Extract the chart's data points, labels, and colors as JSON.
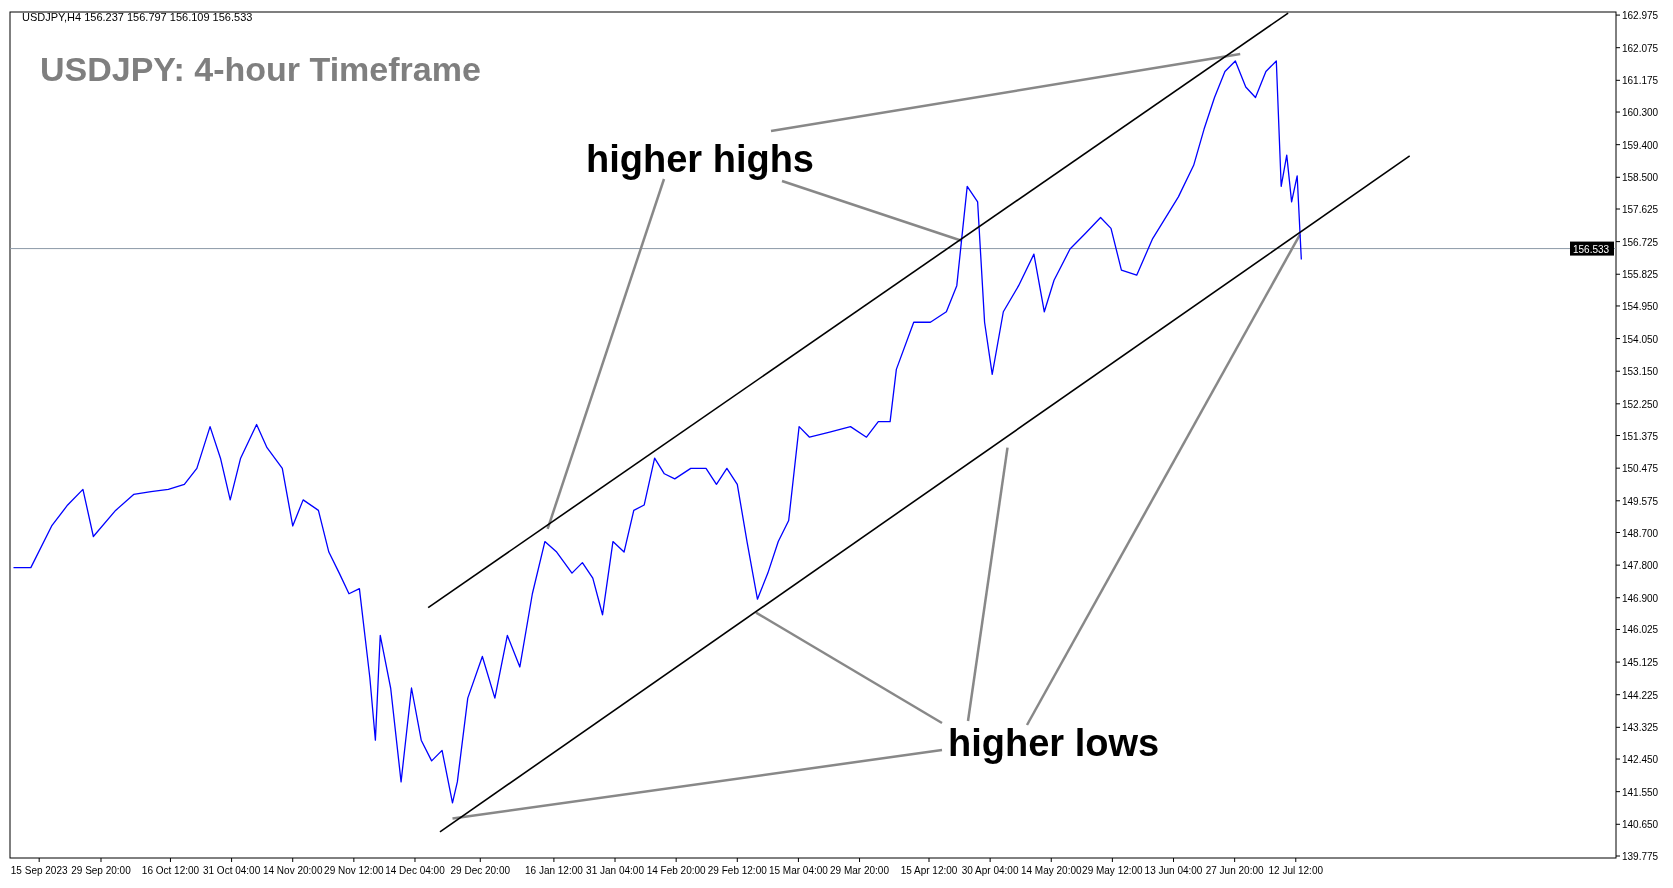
{
  "chart_data": {
    "type": "line",
    "title": "USDJPY: 4-hour Timeframe",
    "annotations": [
      "USDJPY,H4  156.237 156.797 156.109 156.533",
      {
        "text": "higher highs",
        "x": "2024-01-15T00:00",
        "y": 148.8
      },
      {
        "text": "higher lows",
        "x": "2023-12-23T04:00",
        "y": 140.81
      }
    ],
    "series": [
      {
        "color": "#0000ff",
        "x": [
          "2023-09-08T20:00",
          "2023-09-13T00:00",
          "2023-09-18T00:00",
          "2023-09-21T20:00",
          "2023-09-25T12:00",
          "2023-09-28T00:00",
          "2023-10-03T08:00",
          "2023-10-07T16:00",
          "2023-10-11T20:00",
          "2023-10-16T00:00",
          "2023-10-19T20:00",
          "2023-10-22T20:00",
          "2023-10-26T00:00",
          "2023-10-28T12:00",
          "2023-10-30T20:00",
          "2023-11-02T08:00",
          "2023-11-06T04:00",
          "2023-11-08T16:00",
          "2023-11-12T08:00",
          "2023-11-14T20:00",
          "2023-11-17T08:00",
          "2023-11-21T00:00",
          "2023-11-23T12:00",
          "2023-11-26T00:00",
          "2023-11-28T08:00",
          "2023-11-30T20:00",
          "2023-12-03T08:00",
          "2023-12-04T16:00",
          "2023-12-05T20:00",
          "2023-12-08T08:00",
          "2023-12-10T20:00",
          "2023-12-13T08:00",
          "2023-12-15T16:00",
          "2023-12-18T04:00",
          "2023-12-20T16:00",
          "2023-12-23T04:00",
          "2023-12-24T08:00",
          "2023-12-26T20:00",
          "2023-12-30T08:00",
          "2024-01-02T08:00",
          "2024-01-05T08:00",
          "2024-01-08T08:00",
          "2024-01-11T08:00",
          "2024-01-14T08:00",
          "2024-01-17T04:00",
          "2024-01-20T20:00",
          "2024-01-23T08:00",
          "2024-01-25T20:00",
          "2024-01-28T04:00",
          "2024-01-30T16:00",
          "2024-02-02T08:00",
          "2024-02-04T16:00",
          "2024-02-07T04:00",
          "2024-02-09T16:00",
          "2024-02-12T00:00",
          "2024-02-14T12:00",
          "2024-02-18T08:00",
          "2024-02-22T00:00",
          "2024-02-24T12:00",
          "2024-02-27T00:00",
          "2024-02-29T12:00",
          "2024-03-02T20:00",
          "2024-03-05T08:00",
          "2024-03-07T20:00",
          "2024-03-10T08:00",
          "2024-03-12T20:00",
          "2024-03-15T08:00",
          "2024-03-17T20:00",
          "2024-03-22T16:00",
          "2024-03-27T16:00",
          "2024-03-31T12:00",
          "2024-04-03T08:00",
          "2024-04-06T04:00",
          "2024-04-07T16:00",
          "2024-04-11T20:00",
          "2024-04-15T20:00",
          "2024-04-19T16:00",
          "2024-04-22T04:00",
          "2024-04-24T16:00",
          "2024-04-27T04:00",
          "2024-04-28T20:00",
          "2024-04-30T16:00",
          "2024-05-03T08:00",
          "2024-05-07T00:00",
          "2024-05-10T16:00",
          "2024-05-13T04:00",
          "2024-05-15T12:00",
          "2024-05-19T08:00",
          "2024-05-23T00:00",
          "2024-05-26T16:00",
          "2024-05-29T04:00",
          "2024-05-31T16:00",
          "2024-06-04T08:00",
          "2024-06-08T04:00",
          "2024-06-10T12:00",
          "2024-06-14T08:00",
          "2024-06-18T00:00",
          "2024-06-20T12:00",
          "2024-06-23T00:00",
          "2024-06-25T12:00",
          "2024-06-28T00:00",
          "2024-06-30T12:00",
          "2024-07-02T20:00",
          "2024-07-05T08:00",
          "2024-07-07T20:00",
          "2024-07-09T00:00",
          "2024-07-10T08:00",
          "2024-07-11T12:00",
          "2024-07-12T20:00",
          "2024-07-13T20:00"
        ],
        "values": [
          147.73,
          147.73,
          148.88,
          149.46,
          149.89,
          148.59,
          149.31,
          149.75,
          149.83,
          149.89,
          150.03,
          150.47,
          151.62,
          150.75,
          149.6,
          150.75,
          151.68,
          151.04,
          150.47,
          148.88,
          149.6,
          149.31,
          148.16,
          147.58,
          147.01,
          147.15,
          144.7,
          142.97,
          145.86,
          144.41,
          141.82,
          144.41,
          142.97,
          142.4,
          142.69,
          141.24,
          141.82,
          144.13,
          145.28,
          144.13,
          145.86,
          144.99,
          147.01,
          148.45,
          148.16,
          147.58,
          147.87,
          147.44,
          146.43,
          148.45,
          148.16,
          149.31,
          149.46,
          150.75,
          150.32,
          150.18,
          150.47,
          150.47,
          150.03,
          150.47,
          150.03,
          148.45,
          146.86,
          147.58,
          148.45,
          149.03,
          151.62,
          151.33,
          151.47,
          151.62,
          151.33,
          151.76,
          151.76,
          153.2,
          154.5,
          154.5,
          154.79,
          155.51,
          158.25,
          157.82,
          154.5,
          153.06,
          154.79,
          155.51,
          156.38,
          154.79,
          155.66,
          156.52,
          156.95,
          157.39,
          157.09,
          155.94,
          155.8,
          156.81,
          157.24,
          157.96,
          158.83,
          159.83,
          160.7,
          161.42,
          161.71,
          160.99,
          160.7,
          161.42,
          161.71,
          158.25,
          159.11,
          157.82,
          158.54,
          156.23
        ]
      },
      {
        "type": "line",
        "color": "#000000",
        "x": [
          "2023-12-17T08:00",
          "2024-07-10T16:00"
        ],
        "values": [
          146.63,
          163.03
        ]
      },
      {
        "type": "line",
        "color": "#000000",
        "x": [
          "2023-12-20T04:00",
          "2024-08-08T20:00"
        ],
        "values": [
          140.44,
          159.09
        ]
      }
    ],
    "xlim": [
      "2023-09-08T00:00",
      "2024-09-27T08:00"
    ],
    "xticks": [
      {
        "value": "2023-09-15T00:00",
        "label": "15 Sep 2023"
      },
      {
        "value": "2023-09-29T20:00",
        "label": "29 Sep 20:00"
      },
      {
        "value": "2023-10-16T12:00",
        "label": "16 Oct 12:00"
      },
      {
        "value": "2023-10-31T04:00",
        "label": "31 Oct 04:00"
      },
      {
        "value": "2023-11-14T20:00",
        "label": "14 Nov 20:00"
      },
      {
        "value": "2023-11-29T12:00",
        "label": "29 Nov 12:00"
      },
      {
        "value": "2023-12-14T04:00",
        "label": "14 Dec 04:00"
      },
      {
        "value": "2023-12-29T20:00",
        "label": "29 Dec 20:00"
      },
      {
        "value": "2024-01-16T12:00",
        "label": "16 Jan 12:00"
      },
      {
        "value": "2024-01-31T04:00",
        "label": "31 Jan 04:00"
      },
      {
        "value": "2024-02-14T20:00",
        "label": "14 Feb 20:00"
      },
      {
        "value": "2024-02-29T12:00",
        "label": "29 Feb 12:00"
      },
      {
        "value": "2024-03-15T04:00",
        "label": "15 Mar 04:00"
      },
      {
        "value": "2024-03-29T20:00",
        "label": "29 Mar 20:00"
      },
      {
        "value": "2024-04-15T12:00",
        "label": "15 Apr 12:00"
      },
      {
        "value": "2024-04-30T04:00",
        "label": "30 Apr 04:00"
      },
      {
        "value": "2024-05-14T20:00",
        "label": "14 May 20:00"
      },
      {
        "value": "2024-05-29T12:00",
        "label": "29 May 12:00"
      },
      {
        "value": "2024-06-13T04:00",
        "label": "13 Jun 04:00"
      },
      {
        "value": "2024-06-27T20:00",
        "label": "27 Jun 20:00"
      },
      {
        "value": "2024-07-12T12:00",
        "label": "12 Jul 12:00"
      }
    ],
    "ylim": [
      139.72,
      163.06
    ],
    "yticks": [
      162.975,
      162.075,
      161.175,
      {
        "value": 160.3,
        "label": "160.300"
      },
      {
        "value": 159.4,
        "label": "159.400"
      },
      {
        "value": 158.5,
        "label": "158.500"
      },
      157.625,
      156.725,
      155.825,
      {
        "value": 154.95,
        "label": "154.950"
      },
      {
        "value": 154.05,
        "label": "154.050"
      },
      {
        "value": 153.15,
        "label": "153.150"
      },
      {
        "value": 152.25,
        "label": "152.250"
      },
      151.375,
      150.475,
      149.575,
      {
        "value": 148.7,
        "label": "148.700"
      },
      {
        "value": 147.8,
        "label": "147.800"
      },
      {
        "value": 146.9,
        "label": "146.900"
      },
      146.025,
      145.125,
      144.225,
      143.325,
      {
        "value": 142.45,
        "label": "142.450"
      },
      {
        "value": 141.55,
        "label": "141.550"
      },
      {
        "value": 140.65,
        "label": "140.650"
      },
      139.775
    ],
    "ref_lines": [
      {
        "axis": "y",
        "value": 156.533,
        "label": "156.533",
        "color": "#8c9aa8"
      }
    ],
    "grid": false
  }
}
